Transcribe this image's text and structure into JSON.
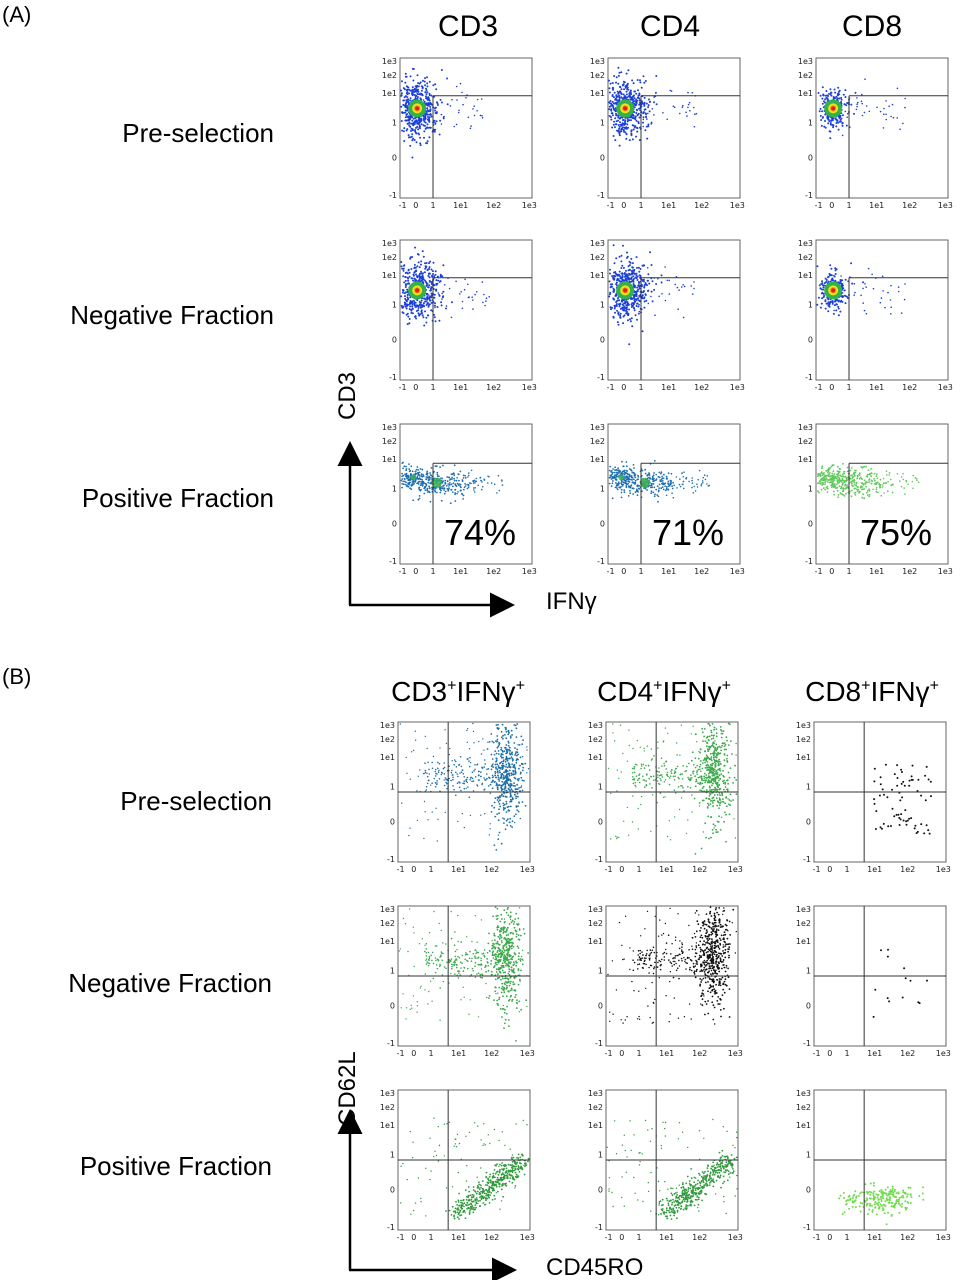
{
  "panel_a": {
    "label": "(A)",
    "columns": [
      "CD3",
      "CD4",
      "CD8"
    ],
    "rows": [
      "Pre-selection",
      "Negative Fraction",
      "Positive Fraction"
    ],
    "y_axis": "CD3",
    "x_axis": "IFNγ"
  },
  "panel_b": {
    "label": "(B)",
    "columns": [
      {
        "base": "CD3",
        "sup1": "+",
        "mid": "IFNγ",
        "sup2": "+"
      },
      {
        "base": "CD4",
        "sup1": "+",
        "mid": "IFNγ",
        "sup2": "+"
      },
      {
        "base": "CD8",
        "sup1": "+",
        "mid": "IFNγ",
        "sup2": "+"
      }
    ],
    "rows": [
      "Pre-selection",
      "Negative Fraction",
      "Positive Fraction"
    ],
    "y_axis": "CD62L",
    "x_axis": "CD45RO"
  },
  "chart_data": [
    {
      "type": "scatter",
      "panel": "A",
      "title": "CD3",
      "xlabel": "IFNγ",
      "ylabel": "CD3",
      "x_ticks": [
        "-1",
        "0",
        "1",
        "1e1",
        "1e2",
        "1e3"
      ],
      "y_ticks": [
        "1e3",
        "1e2",
        "1e1",
        "1",
        "0",
        "-1"
      ],
      "rows": [
        {
          "name": "Pre-selection",
          "color": "#1c3fd6",
          "annotation": ""
        },
        {
          "name": "Negative Fraction",
          "color": "#1c3fd6",
          "annotation": ""
        },
        {
          "name": "Positive Fraction",
          "color": "#1f6fb0",
          "annotation": "74%"
        }
      ]
    },
    {
      "type": "scatter",
      "panel": "A",
      "title": "CD4",
      "xlabel": "IFNγ",
      "ylabel": "CD3",
      "x_ticks": [
        "-1",
        "0",
        "1",
        "1e1",
        "1e2",
        "1e3"
      ],
      "y_ticks": [
        "1e3",
        "1e2",
        "1e1",
        "1",
        "0",
        "-1"
      ],
      "rows": [
        {
          "name": "Pre-selection",
          "color": "#1c3fd6",
          "annotation": ""
        },
        {
          "name": "Negative Fraction",
          "color": "#1c3fd6",
          "annotation": ""
        },
        {
          "name": "Positive Fraction",
          "color": "#1f6fb0",
          "annotation": "71%"
        }
      ]
    },
    {
      "type": "scatter",
      "panel": "A",
      "title": "CD8",
      "xlabel": "IFNγ",
      "ylabel": "CD3",
      "x_ticks": [
        "-1",
        "0",
        "1",
        "1e1",
        "1e2",
        "1e3"
      ],
      "y_ticks": [
        "1e3",
        "1e2",
        "1e1",
        "1",
        "0",
        "-1"
      ],
      "rows": [
        {
          "name": "Pre-selection",
          "color": "#1c3fd6",
          "annotation": ""
        },
        {
          "name": "Negative Fraction",
          "color": "#1c3fd6",
          "annotation": ""
        },
        {
          "name": "Positive Fraction",
          "color": "#5fc85a",
          "annotation": "75%"
        }
      ]
    },
    {
      "type": "scatter",
      "panel": "B",
      "title": "CD3+IFNγ+",
      "xlabel": "CD45RO",
      "ylabel": "CD62L",
      "x_ticks": [
        "-1",
        "0",
        "1",
        "1e1",
        "1e2",
        "1e3"
      ],
      "y_ticks": [
        "1e3",
        "1e2",
        "1e1",
        "1",
        "0",
        "-1"
      ],
      "rows": [
        {
          "name": "Pre-selection",
          "color": "#1e6fa8"
        },
        {
          "name": "Negative Fraction",
          "color": "#3aa84a"
        },
        {
          "name": "Positive Fraction",
          "color": "#2e9a3c"
        }
      ]
    },
    {
      "type": "scatter",
      "panel": "B",
      "title": "CD4+IFNγ+",
      "xlabel": "CD45RO",
      "ylabel": "CD62L",
      "x_ticks": [
        "-1",
        "0",
        "1",
        "1e1",
        "1e2",
        "1e3"
      ],
      "y_ticks": [
        "1e3",
        "1e2",
        "1e1",
        "1",
        "0",
        "-1"
      ],
      "rows": [
        {
          "name": "Pre-selection",
          "color": "#3aa84a"
        },
        {
          "name": "Negative Fraction",
          "color": "#111111"
        },
        {
          "name": "Positive Fraction",
          "color": "#2e9a3c"
        }
      ]
    },
    {
      "type": "scatter",
      "panel": "B",
      "title": "CD8+IFNγ+",
      "xlabel": "CD45RO",
      "ylabel": "CD62L",
      "x_ticks": [
        "-1",
        "0",
        "1",
        "1e1",
        "1e2",
        "1e3"
      ],
      "y_ticks": [
        "1e3",
        "1e2",
        "1e1",
        "1",
        "0",
        "-1"
      ],
      "rows": [
        {
          "name": "Pre-selection",
          "color": "#111111"
        },
        {
          "name": "Negative Fraction",
          "color": "#111111"
        },
        {
          "name": "Positive Fraction",
          "color": "#6fdc4a"
        }
      ]
    }
  ]
}
